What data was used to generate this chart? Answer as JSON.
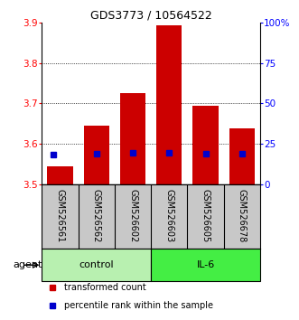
{
  "title": "GDS3773 / 10564522",
  "samples": [
    "GSM526561",
    "GSM526562",
    "GSM526602",
    "GSM526603",
    "GSM526605",
    "GSM526678"
  ],
  "transformed_counts": [
    3.545,
    3.645,
    3.725,
    3.893,
    3.695,
    3.638
  ],
  "percentile_blue_y": [
    3.573,
    3.576,
    3.577,
    3.578,
    3.576,
    3.576
  ],
  "blue_marker_x_offset": [
    -0.18,
    0.0,
    0.0,
    0.0,
    0.0,
    0.0
  ],
  "ylim": [
    3.5,
    3.9
  ],
  "yticks_left": [
    3.5,
    3.6,
    3.7,
    3.8,
    3.9
  ],
  "yticks_right_labels": [
    "0",
    "25",
    "50",
    "75",
    "100%"
  ],
  "yticks_right_pct": [
    0,
    25,
    50,
    75,
    100
  ],
  "bar_color": "#cc0000",
  "blue_color": "#0000cc",
  "bar_width": 0.7,
  "background_plot": "#ffffff",
  "background_label": "#c8c8c8",
  "control_color": "#b8f0b0",
  "il6_color": "#44ee44",
  "agent_label": "agent",
  "legend_items": [
    {
      "color": "#cc0000",
      "label": "transformed count"
    },
    {
      "color": "#0000cc",
      "label": "percentile rank within the sample"
    }
  ]
}
